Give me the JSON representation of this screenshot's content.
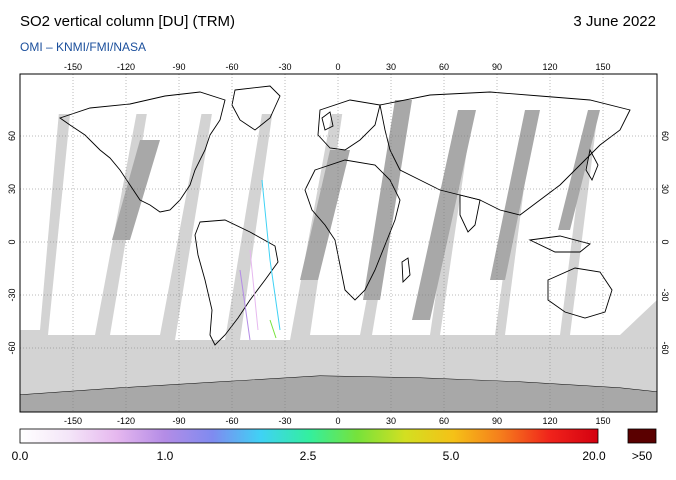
{
  "header": {
    "title": "SO2 vertical column [DU] (TRM)",
    "date": "3 June 2022",
    "credit": "OMI  –  KNMI/FMI/NASA"
  },
  "map": {
    "projection": "equirectangular",
    "lon_ticks": [
      "-150",
      "-120",
      "-90",
      "-60",
      "-30",
      "0",
      "30",
      "60",
      "90",
      "120",
      "150"
    ],
    "lat_ticks": [
      "60",
      "30",
      "0",
      "-30",
      "-60"
    ],
    "colors": {
      "ocean_frame": "#d3d3d3",
      "swath_gap": "#a8a8a8",
      "land_outline": "#000000",
      "data_background": "#ffffff"
    }
  },
  "colorbar": {
    "labels": [
      "0.0",
      "1.0",
      "2.5",
      "5.0",
      "20.0"
    ],
    "overflow_label": ">50",
    "overflow_color": "#5a0000",
    "gradient": [
      "#ffffff",
      "#f4e6f8",
      "#e6b8ef",
      "#b48ce6",
      "#7f8bf0",
      "#3fd2f5",
      "#33ef9f",
      "#76e23b",
      "#d3df21",
      "#f5c117",
      "#f57c1c",
      "#f0231b",
      "#d40010"
    ]
  }
}
